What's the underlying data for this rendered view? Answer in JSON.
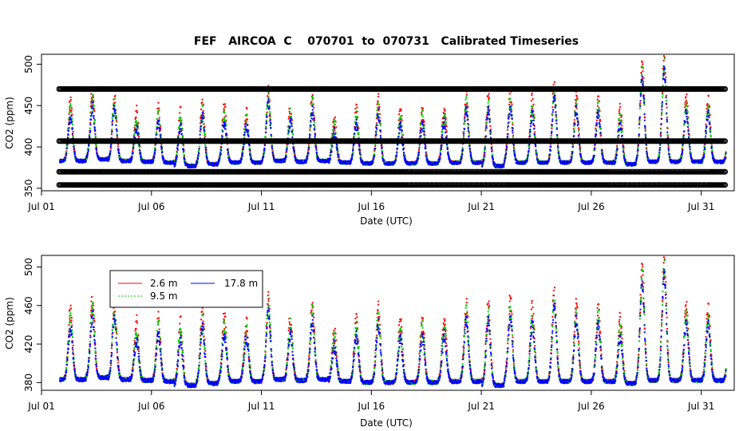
{
  "chart_data": [
    {
      "type": "scatter",
      "title": "FEF   AIRCOA  C    070701  to  070731   Calibrated Timeseries",
      "xlabel": "Date (UTC)",
      "ylabel": "CO2 (ppm)",
      "xlim": [
        0,
        31.5
      ],
      "ylim": [
        347,
        512
      ],
      "x_ticks": [
        {
          "day": 0,
          "label": "Jul 01"
        },
        {
          "day": 5,
          "label": "Jul 06"
        },
        {
          "day": 10,
          "label": "Jul 11"
        },
        {
          "day": 15,
          "label": "Jul 16"
        },
        {
          "day": 20,
          "label": "Jul 21"
        },
        {
          "day": 25,
          "label": "Jul 26"
        },
        {
          "day": 30,
          "label": "Jul 31"
        }
      ],
      "y_ticks": [
        350,
        400,
        450,
        500
      ],
      "reference_levels": [
        {
          "name": "calibration standard",
          "value": 470
        },
        {
          "name": "calibration standard",
          "value": 407
        },
        {
          "name": "calibration standard",
          "value": 370
        },
        {
          "name": "calibration standard",
          "value": 354
        }
      ],
      "reference_range_days": [
        0.8,
        31.1
      ],
      "series": [
        {
          "name": "2.6 m",
          "color": "#ff0000",
          "amp_boost": 14
        },
        {
          "name": "9.5 m",
          "color": "#00cc00",
          "amp_boost": 7
        },
        {
          "name": "17.8 m",
          "color": "#0000ff",
          "amp_boost": 0
        }
      ],
      "daily_night_peak": [
        0,
        438,
        450,
        446,
        425,
        430,
        425,
        437,
        432,
        427,
        452,
        432,
        445,
        418,
        428,
        440,
        426,
        428,
        430,
        446,
        444,
        450,
        441,
        458,
        444,
        440,
        428,
        482,
        492,
        442,
        440,
        441
      ],
      "daily_baseline": [
        0,
        384,
        386,
        384,
        383,
        382,
        378,
        380,
        382,
        382,
        384,
        383,
        384,
        382,
        381,
        381,
        381,
        381,
        382,
        382,
        378,
        382,
        382,
        382,
        382,
        382,
        380,
        383,
        383,
        383,
        383,
        383
      ],
      "data_range_days": [
        0.8,
        31.1
      ]
    },
    {
      "type": "scatter",
      "title": "",
      "xlabel": "Date (UTC)",
      "ylabel": "CO2 (ppm)",
      "xlim": [
        0,
        31.5
      ],
      "ylim": [
        372,
        512
      ],
      "x_ticks": [
        {
          "day": 0,
          "label": "Jul 01"
        },
        {
          "day": 5,
          "label": "Jul 06"
        },
        {
          "day": 10,
          "label": "Jul 11"
        },
        {
          "day": 15,
          "label": "Jul 16"
        },
        {
          "day": 20,
          "label": "Jul 21"
        },
        {
          "day": 25,
          "label": "Jul 26"
        },
        {
          "day": 30,
          "label": "Jul 31"
        }
      ],
      "y_ticks": [
        380,
        420,
        460,
        500
      ],
      "legend": [
        {
          "label": "2.6 m",
          "color": "#ff0000"
        },
        {
          "label": "9.5 m",
          "color": "#00cc00"
        },
        {
          "label": "17.8 m",
          "color": "#0000ff"
        }
      ],
      "legend_position": "top-left"
    }
  ]
}
